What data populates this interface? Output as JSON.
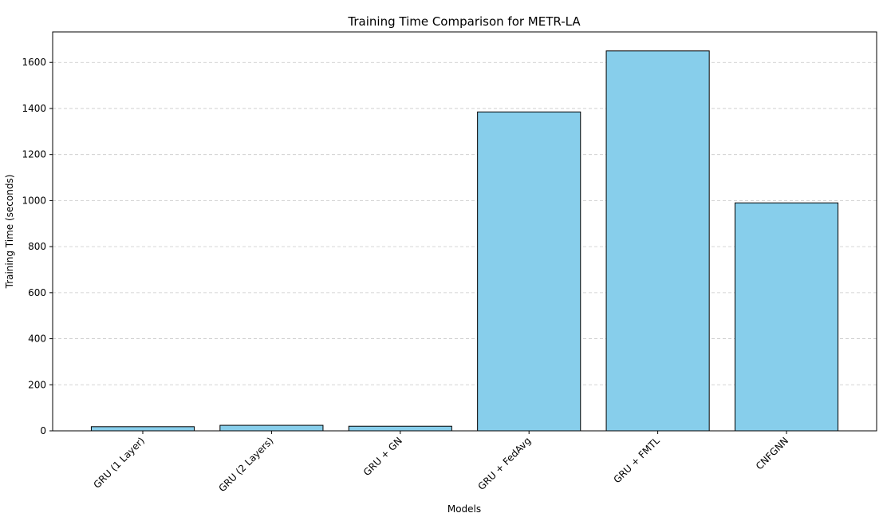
{
  "chart_data": {
    "type": "bar",
    "title": "Training Time Comparison for METR-LA",
    "xlabel": "Models",
    "ylabel": "Training Time (seconds)",
    "categories": [
      "GRU (1 Layer)",
      "GRU (2 Layers)",
      "GRU + GN",
      "GRU + FedAvg",
      "GRU + FMTL",
      "CNFGNN"
    ],
    "values": [
      18,
      24,
      20,
      1385,
      1650,
      990
    ],
    "ylim": [
      0,
      1732.5
    ],
    "yticks": [
      0,
      200,
      400,
      600,
      800,
      1000,
      1200,
      1400,
      1600
    ],
    "grid": "y dashed",
    "colors": {
      "bar_fill": "#87ceeb",
      "bar_edge": "#000000",
      "grid": "#c8c8c8"
    }
  }
}
